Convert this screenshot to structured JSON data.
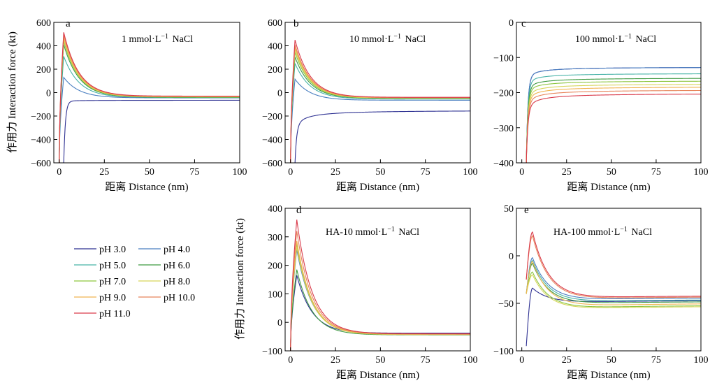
{
  "legend": {
    "entries": [
      {
        "label": "pH 3.0",
        "color": "#2e3192"
      },
      {
        "label": "pH 4.0",
        "color": "#4a7fc1"
      },
      {
        "label": "pH 5.0",
        "color": "#48b3a8"
      },
      {
        "label": "pH 6.0",
        "color": "#3f9a42"
      },
      {
        "label": "pH 7.0",
        "color": "#8dc63f"
      },
      {
        "label": "pH 8.0",
        "color": "#d7d55a"
      },
      {
        "label": "pH 9.0",
        "color": "#f0b450"
      },
      {
        "label": "pH 10.0",
        "color": "#e8845a"
      },
      {
        "label": "pH 11.0",
        "color": "#d93a4a"
      }
    ]
  },
  "chart_data": [
    {
      "type": "line",
      "panel": "a",
      "condition": "1 mmol·L⁻¹ NaCl",
      "xlabel": "距离 Distance (nm)",
      "ylabel": "作用力 Interaction force (kt)",
      "xlim": [
        -3,
        100
      ],
      "ylim": [
        -600,
        600
      ],
      "xticks": [
        0,
        25,
        50,
        75,
        100
      ],
      "yticks": [
        -600,
        -400,
        -200,
        0,
        200,
        400,
        600
      ],
      "peak_x": 2.5,
      "series": [
        {
          "name": "pH 3.0",
          "curve": "attractive",
          "start": -600,
          "near": -75,
          "end": -65
        },
        {
          "name": "pH 4.0",
          "curve": "barrier",
          "peak": 130,
          "end": -45
        },
        {
          "name": "pH 5.0",
          "curve": "barrier",
          "peak": 310,
          "end": -42
        },
        {
          "name": "pH 6.0",
          "curve": "barrier",
          "peak": 410,
          "end": -40
        },
        {
          "name": "pH 7.0",
          "curve": "barrier",
          "peak": 440,
          "end": -38
        },
        {
          "name": "pH 8.0",
          "curve": "barrier",
          "peak": 455,
          "end": -36
        },
        {
          "name": "pH 9.0",
          "curve": "barrier",
          "peak": 470,
          "end": -35
        },
        {
          "name": "pH 10.0",
          "curve": "barrier",
          "peak": 495,
          "end": -32
        },
        {
          "name": "pH 11.0",
          "curve": "barrier",
          "peak": 515,
          "end": -30
        }
      ]
    },
    {
      "type": "line",
      "panel": "b",
      "condition": "10 mmol·L⁻¹ NaCl",
      "xlabel": "距离 Distance (nm)",
      "ylabel": "",
      "xlim": [
        -3,
        100
      ],
      "ylim": [
        -600,
        600
      ],
      "xticks": [
        0,
        25,
        50,
        75,
        100
      ],
      "yticks": [
        -600,
        -400,
        -200,
        0,
        200,
        400,
        600
      ],
      "peak_x": 2.5,
      "series": [
        {
          "name": "pH 3.0",
          "curve": "attractive",
          "start": -600,
          "near": -300,
          "end": -150
        },
        {
          "name": "pH 4.0",
          "curve": "barrier",
          "peak": 115,
          "end": -65
        },
        {
          "name": "pH 5.0",
          "curve": "barrier",
          "peak": 250,
          "end": -55
        },
        {
          "name": "pH 6.0",
          "curve": "barrier",
          "peak": 305,
          "end": -50
        },
        {
          "name": "pH 7.0",
          "curve": "barrier",
          "peak": 345,
          "end": -48
        },
        {
          "name": "pH 8.0",
          "curve": "barrier",
          "peak": 370,
          "end": -46
        },
        {
          "name": "pH 9.0",
          "curve": "barrier",
          "peak": 390,
          "end": -44
        },
        {
          "name": "pH 10.0",
          "curve": "barrier",
          "peak": 410,
          "end": -42
        },
        {
          "name": "pH 11.0",
          "curve": "barrier",
          "peak": 450,
          "end": -40
        }
      ]
    },
    {
      "type": "line",
      "panel": "c",
      "condition": "100 mmol·L⁻¹ NaCl",
      "xlabel": "距离 Distance (nm)",
      "ylabel": "",
      "xlim": [
        -3,
        100
      ],
      "ylim": [
        -400,
        0
      ],
      "xticks": [
        0,
        25,
        50,
        75,
        100
      ],
      "yticks": [
        -400,
        -300,
        -200,
        -100,
        0
      ],
      "peak_x": 2.5,
      "series": [
        {
          "name": "pH 3.0",
          "curve": "attractive",
          "start": -400,
          "near": -160,
          "end": -127
        },
        {
          "name": "pH 4.0",
          "curve": "attractive",
          "start": -400,
          "near": -160,
          "end": -127
        },
        {
          "name": "pH 5.0",
          "curve": "attractive",
          "start": -400,
          "near": -175,
          "end": -145
        },
        {
          "name": "pH 6.0",
          "curve": "attractive",
          "start": -400,
          "near": -190,
          "end": -158
        },
        {
          "name": "pH 7.0",
          "curve": "attractive",
          "start": -400,
          "near": -200,
          "end": -166
        },
        {
          "name": "pH 8.0",
          "curve": "attractive",
          "start": -400,
          "near": -212,
          "end": -175
        },
        {
          "name": "pH 9.0",
          "curve": "attractive",
          "start": -400,
          "near": -222,
          "end": -183
        },
        {
          "name": "pH 10.0",
          "curve": "attractive",
          "start": -400,
          "near": -233,
          "end": -192
        },
        {
          "name": "pH 11.0",
          "curve": "attractive",
          "start": -400,
          "near": -248,
          "end": -202
        }
      ]
    },
    {
      "type": "line",
      "panel": "d",
      "condition": "HA-10 mmol·L⁻¹ NaCl",
      "xlabel": "距离 Distance (nm)",
      "ylabel": "作用力 Interaction force (kt)",
      "xlim": [
        -3,
        100
      ],
      "ylim": [
        -100,
        400
      ],
      "xticks": [
        0,
        25,
        50,
        75,
        100
      ],
      "yticks": [
        -100,
        0,
        100,
        200,
        300,
        400
      ],
      "peak_x": 3.5,
      "series": [
        {
          "name": "pH 3.0",
          "curve": "barrier",
          "peak": 165,
          "end": -38
        },
        {
          "name": "pH 4.0",
          "curve": "barrier",
          "peak": 255,
          "end": -40
        },
        {
          "name": "pH 5.0",
          "curve": "barrier",
          "peak": 270,
          "end": -41
        },
        {
          "name": "pH 6.0",
          "curve": "barrier",
          "peak": 185,
          "end": -44
        },
        {
          "name": "pH 7.0",
          "curve": "barrier",
          "peak": 275,
          "end": -42
        },
        {
          "name": "pH 8.0",
          "curve": "barrier",
          "peak": 265,
          "end": -43
        },
        {
          "name": "pH 9.0",
          "curve": "barrier",
          "peak": 285,
          "end": -42
        },
        {
          "name": "pH 10.0",
          "curve": "barrier",
          "peak": 320,
          "end": -41
        },
        {
          "name": "pH 11.0",
          "curve": "barrier",
          "peak": 360,
          "end": -40
        }
      ]
    },
    {
      "type": "line",
      "panel": "e",
      "condition": "HA-100 mmol·L⁻¹ NaCl",
      "xlabel": "距离 Distance (nm)",
      "ylabel": "",
      "xlim": [
        -3,
        100
      ],
      "ylim": [
        -100,
        50
      ],
      "xticks": [
        0,
        25,
        50,
        75,
        100
      ],
      "yticks": [
        -100,
        -50,
        0,
        50
      ],
      "peak_x": 6,
      "series": [
        {
          "name": "pH 3.0",
          "curve": "shallow",
          "start": -95,
          "peak": -34,
          "dip": -50,
          "end": -47
        },
        {
          "name": "pH 4.0",
          "curve": "shallow",
          "start": -40,
          "peak": -2,
          "dip": -48,
          "end": -44
        },
        {
          "name": "pH 5.0",
          "curve": "shallow",
          "start": -40,
          "peak": -5,
          "dip": -50,
          "end": -46
        },
        {
          "name": "pH 6.0",
          "curve": "shallow",
          "start": -40,
          "peak": -8,
          "dip": -52,
          "end": -48
        },
        {
          "name": "pH 7.0",
          "curve": "shallow",
          "start": -40,
          "peak": -17,
          "dip": -57,
          "end": -52
        },
        {
          "name": "pH 8.0",
          "curve": "shallow",
          "start": -40,
          "peak": -20,
          "dip": -58,
          "end": -53
        },
        {
          "name": "pH 9.0",
          "curve": "shallow",
          "start": -40,
          "peak": -6,
          "dip": -55,
          "end": -50
        },
        {
          "name": "pH 10.0",
          "curve": "shallow",
          "start": -25,
          "peak": 21,
          "dip": -47,
          "end": -43
        },
        {
          "name": "pH 11.0",
          "curve": "shallow",
          "start": -25,
          "peak": 25,
          "dip": -46,
          "end": -42
        }
      ]
    }
  ]
}
